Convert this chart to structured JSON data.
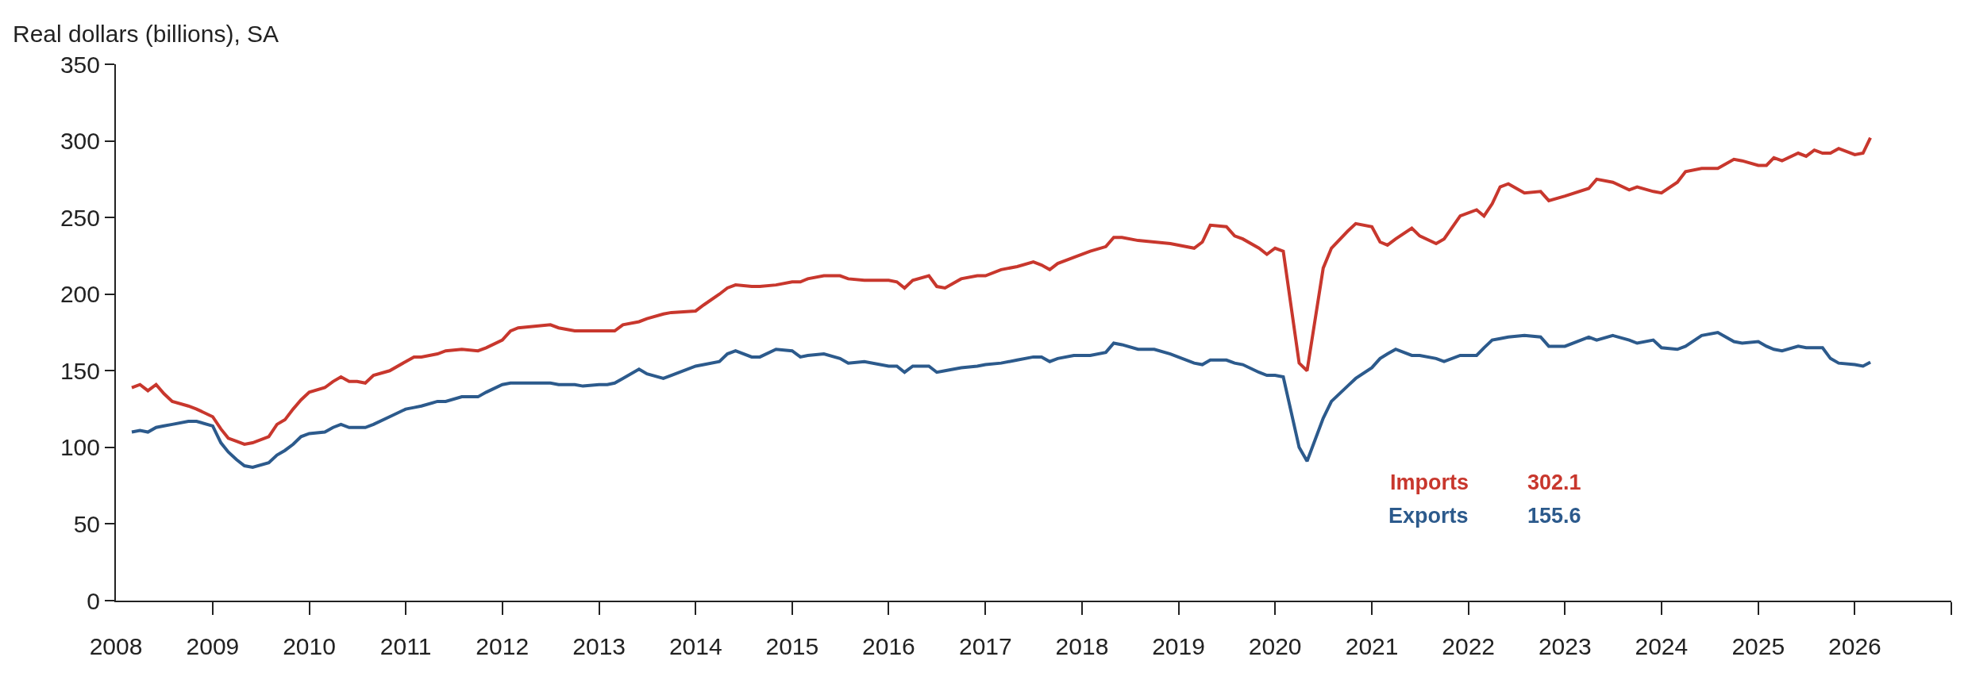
{
  "chart_data": {
    "type": "line",
    "ylabel": "Real dollars (billions), SA",
    "xlim": [
      "2008-01-01",
      "2027-01-01"
    ],
    "xticks": [
      {
        "value": "2008-01-01",
        "label": "2008"
      },
      {
        "value": "2009-01-01",
        "label": "2009"
      },
      {
        "value": "2010-01-01",
        "label": "2010"
      },
      {
        "value": "2011-01-01",
        "label": "2011"
      },
      {
        "value": "2012-01-01",
        "label": "2012"
      },
      {
        "value": "2013-01-01",
        "label": "2013"
      },
      {
        "value": "2014-01-01",
        "label": "2014"
      },
      {
        "value": "2015-01-01",
        "label": "2015"
      },
      {
        "value": "2016-01-01",
        "label": "2016"
      },
      {
        "value": "2017-01-01",
        "label": "2017"
      },
      {
        "value": "2018-01-01",
        "label": "2018"
      },
      {
        "value": "2019-01-01",
        "label": "2019"
      },
      {
        "value": "2020-01-01",
        "label": "2020"
      },
      {
        "value": "2021-01-01",
        "label": "2021"
      },
      {
        "value": "2022-01-01",
        "label": "2022"
      },
      {
        "value": "2023-01-01",
        "label": "2023"
      },
      {
        "value": "2024-01-01",
        "label": "2024"
      },
      {
        "value": "2025-01-01",
        "label": "2025"
      },
      {
        "value": "2026-01-01",
        "label": "2026"
      },
      {
        "value": "2027-01-01",
        "label": null
      }
    ],
    "ylim": [
      0,
      350
    ],
    "yticks": [
      0,
      50,
      100,
      150,
      200,
      250,
      300,
      350
    ],
    "grid": false,
    "legend": "bottom",
    "marker": "none",
    "line_style": "solid",
    "annotations": [
      "302.1",
      "155.6"
    ],
    "x": [
      "2008-03",
      "2008-04",
      "2008-05",
      "2008-06",
      "2008-07",
      "2008-08",
      "2008-10",
      "2008-11",
      "2009-01",
      "2009-02",
      "2009-03",
      "2009-04",
      "2009-05",
      "2009-06",
      "2009-08",
      "2009-09",
      "2009-10",
      "2009-11",
      "2009-12",
      "2010-01",
      "2010-03",
      "2010-04",
      "2010-05",
      "2010-06",
      "2010-07",
      "2010-08",
      "2010-09",
      "2010-11",
      "2011-01",
      "2011-02",
      "2011-03",
      "2011-05",
      "2011-06",
      "2011-08",
      "2011-10",
      "2011-11",
      "2012-01",
      "2012-02",
      "2012-03",
      "2012-05",
      "2012-07",
      "2012-08",
      "2012-10",
      "2012-11",
      "2013-01",
      "2013-02",
      "2013-03",
      "2013-04",
      "2013-06",
      "2013-07",
      "2013-09",
      "2013-10",
      "2014-01",
      "2014-02",
      "2014-04",
      "2014-05",
      "2014-06",
      "2014-08",
      "2014-09",
      "2014-11",
      "2015-01",
      "2015-02",
      "2015-03",
      "2015-05",
      "2015-07",
      "2015-08",
      "2015-10",
      "2016-01",
      "2016-02",
      "2016-03",
      "2016-04",
      "2016-06",
      "2016-07",
      "2016-08",
      "2016-10",
      "2016-12",
      "2017-01",
      "2017-03",
      "2017-05",
      "2017-07",
      "2017-08",
      "2017-09",
      "2017-10",
      "2017-12",
      "2018-02",
      "2018-04",
      "2018-05",
      "2018-06",
      "2018-08",
      "2018-10",
      "2018-12",
      "2019-03",
      "2019-04",
      "2019-05",
      "2019-07",
      "2019-08",
      "2019-09",
      "2019-11",
      "2019-12",
      "2020-01",
      "2020-02",
      "2020-04",
      "2020-05",
      "2020-07",
      "2020-08",
      "2020-10",
      "2020-11",
      "2021-01",
      "2021-02",
      "2021-03",
      "2021-04",
      "2021-06",
      "2021-07",
      "2021-09",
      "2021-10",
      "2021-12",
      "2022-02",
      "2022-03",
      "2022-04",
      "2022-05",
      "2022-06",
      "2022-08",
      "2022-10",
      "2022-11",
      "2023-01",
      "2023-04",
      "2023-05",
      "2023-07",
      "2023-09",
      "2023-10",
      "2023-12",
      "2024-01",
      "2024-03",
      "2024-04",
      "2024-06",
      "2024-08",
      "2024-10",
      "2024-11",
      "2025-01",
      "2025-02",
      "2025-03",
      "2025-04",
      "2025-06",
      "2025-07",
      "2025-08",
      "2025-09",
      "2025-10",
      "2025-11",
      "2026-01",
      "2026-02",
      "2026-03"
    ],
    "series": [
      {
        "name": "Imports",
        "color": "#c8372d",
        "values": [
          139,
          141,
          137,
          141,
          135,
          130,
          127,
          125,
          120,
          112,
          106,
          104,
          102,
          103,
          107,
          115,
          118,
          125,
          131,
          136,
          139,
          143,
          146,
          143,
          143,
          142,
          147,
          150,
          156,
          159,
          159,
          161,
          163,
          164,
          163,
          165,
          170,
          176,
          178,
          179,
          180,
          178,
          176,
          176,
          176,
          176,
          176,
          180,
          182,
          184,
          187,
          188,
          189,
          193,
          200,
          204,
          206,
          205,
          205,
          206,
          208,
          208,
          210,
          212,
          212,
          210,
          209,
          209,
          208,
          204,
          209,
          212,
          205,
          204,
          210,
          212,
          212,
          216,
          218,
          221,
          219,
          216,
          220,
          224,
          228,
          231,
          237,
          237,
          235,
          234,
          233,
          230,
          234,
          245,
          244,
          238,
          236,
          230,
          226,
          230,
          228,
          155,
          150,
          217,
          230,
          241,
          246,
          244,
          234,
          232,
          236,
          243,
          238,
          233,
          236,
          251,
          255,
          251,
          259,
          270,
          272,
          266,
          267,
          261,
          264,
          269,
          275,
          273,
          268,
          270,
          267,
          266,
          273,
          280,
          282,
          282,
          288,
          287,
          284,
          284,
          289,
          287,
          292,
          290,
          294,
          292,
          292,
          295,
          291,
          292,
          302.1
        ]
      },
      {
        "name": "Exports",
        "color": "#2c5a8c",
        "values": [
          110,
          111,
          110,
          113,
          114,
          115,
          117,
          117,
          114,
          103,
          97,
          92,
          88,
          87,
          90,
          95,
          98,
          102,
          107,
          109,
          110,
          113,
          115,
          113,
          113,
          113,
          115,
          120,
          125,
          126,
          127,
          130,
          130,
          133,
          133,
          136,
          141,
          142,
          142,
          142,
          142,
          141,
          141,
          140,
          141,
          141,
          142,
          145,
          151,
          148,
          145,
          147,
          153,
          154,
          156,
          161,
          163,
          159,
          159,
          164,
          163,
          159,
          160,
          161,
          158,
          155,
          156,
          153,
          153,
          149,
          153,
          153,
          149,
          150,
          152,
          153,
          154,
          155,
          157,
          159,
          159,
          156,
          158,
          160,
          160,
          162,
          168,
          167,
          164,
          164,
          161,
          155,
          154,
          157,
          157,
          155,
          154,
          149,
          147,
          147,
          146,
          100,
          91,
          119,
          130,
          140,
          145,
          152,
          158,
          161,
          164,
          160,
          160,
          158,
          156,
          160,
          160,
          165,
          170,
          171,
          172,
          173,
          172,
          166,
          166,
          172,
          170,
          173,
          170,
          168,
          170,
          165,
          164,
          166,
          173,
          175,
          169,
          168,
          169,
          166,
          164,
          163,
          166,
          165,
          165,
          165,
          158,
          155,
          154,
          153,
          155.6
        ]
      }
    ]
  }
}
